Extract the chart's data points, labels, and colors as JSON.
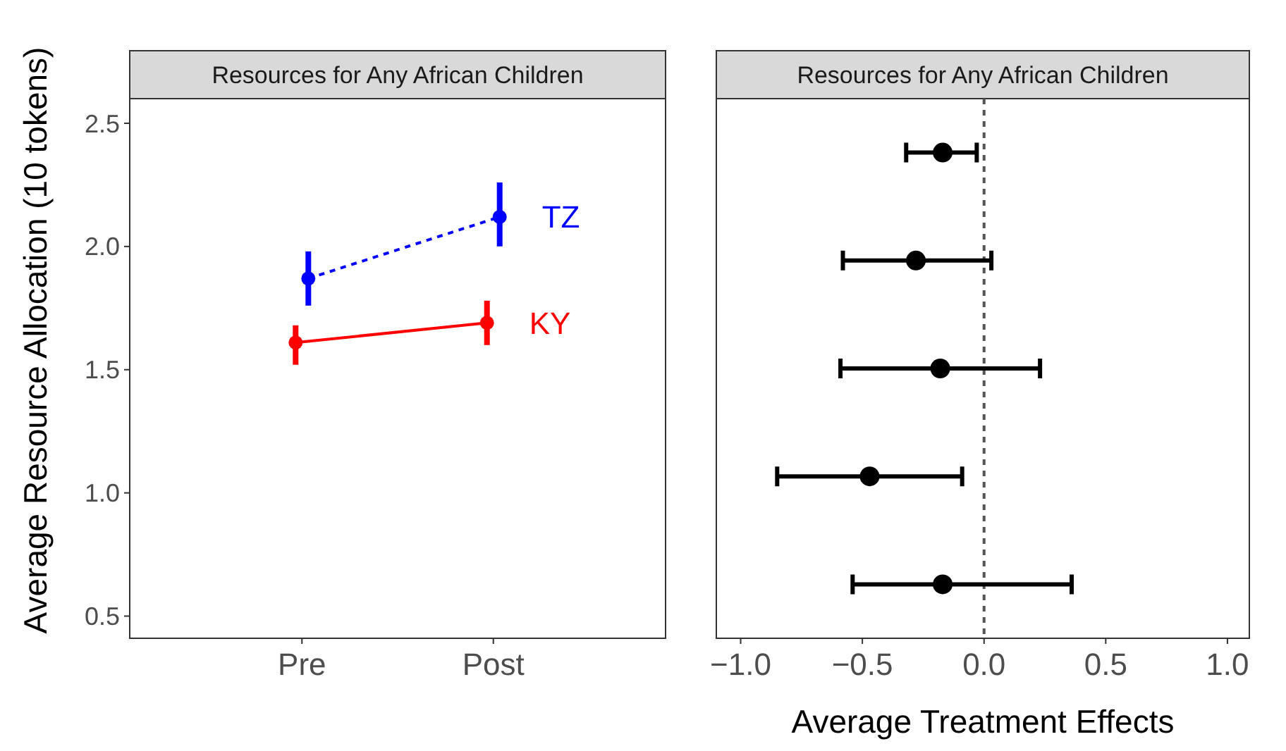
{
  "chart_data": [
    {
      "type": "line",
      "title": "Resources for Any African Children",
      "ylabel": "Average Resource Allocation (10 tokens)",
      "categories": [
        "Pre",
        "Post"
      ],
      "ylim": [
        0.41,
        2.6
      ],
      "yticks": [
        {
          "value": 0.5,
          "label": "0.5"
        },
        {
          "value": 1,
          "label": "1.0"
        },
        {
          "value": 1.5,
          "label": "1.5"
        },
        {
          "value": 2,
          "label": "2.0"
        },
        {
          "value": 2.5,
          "label": "2.5"
        }
      ],
      "legend": false,
      "marker": "circle",
      "series": [
        {
          "name": "TZ",
          "color": "#0000ff",
          "line_style": "dashed",
          "values": [
            1.87,
            2.12
          ],
          "errors": [
            [
              1.76,
              1.98
            ],
            [
              2.0,
              2.26
            ]
          ]
        },
        {
          "name": "KY",
          "color": "#ff0000",
          "line_style": "solid",
          "values": [
            1.61,
            1.69
          ],
          "errors": [
            [
              1.52,
              1.68
            ],
            [
              1.6,
              1.78
            ]
          ]
        }
      ]
    },
    {
      "type": "scatter",
      "orientation": "horizontal",
      "title": "Resources for Any African Children",
      "xlabel": "Average Treatment Effects",
      "categories": [
        null,
        null,
        null,
        null,
        null
      ],
      "xlim": [
        -1.1,
        1.09
      ],
      "xticks": [
        {
          "value": -1,
          "label": "−1.0"
        },
        {
          "value": -0.5,
          "label": "−0.5"
        },
        {
          "value": 0,
          "label": "0.0"
        },
        {
          "value": 0.5,
          "label": "0.5"
        },
        {
          "value": 1,
          "label": "1.0"
        }
      ],
      "tick_labels": "x",
      "marker": "circle",
      "series": [
        {
          "color": "#000000",
          "values": [
            -0.17,
            -0.28,
            -0.18,
            -0.47,
            -0.17
          ],
          "errors": [
            [
              -0.32,
              -0.03
            ],
            [
              -0.58,
              0.03
            ],
            [
              -0.59,
              0.23
            ],
            [
              -0.85,
              -0.09
            ],
            [
              -0.54,
              0.36
            ]
          ]
        }
      ],
      "ref_lines": [
        {
          "axis": "x",
          "value": 0,
          "color": "#555555",
          "line_style": "dashed"
        }
      ]
    }
  ]
}
